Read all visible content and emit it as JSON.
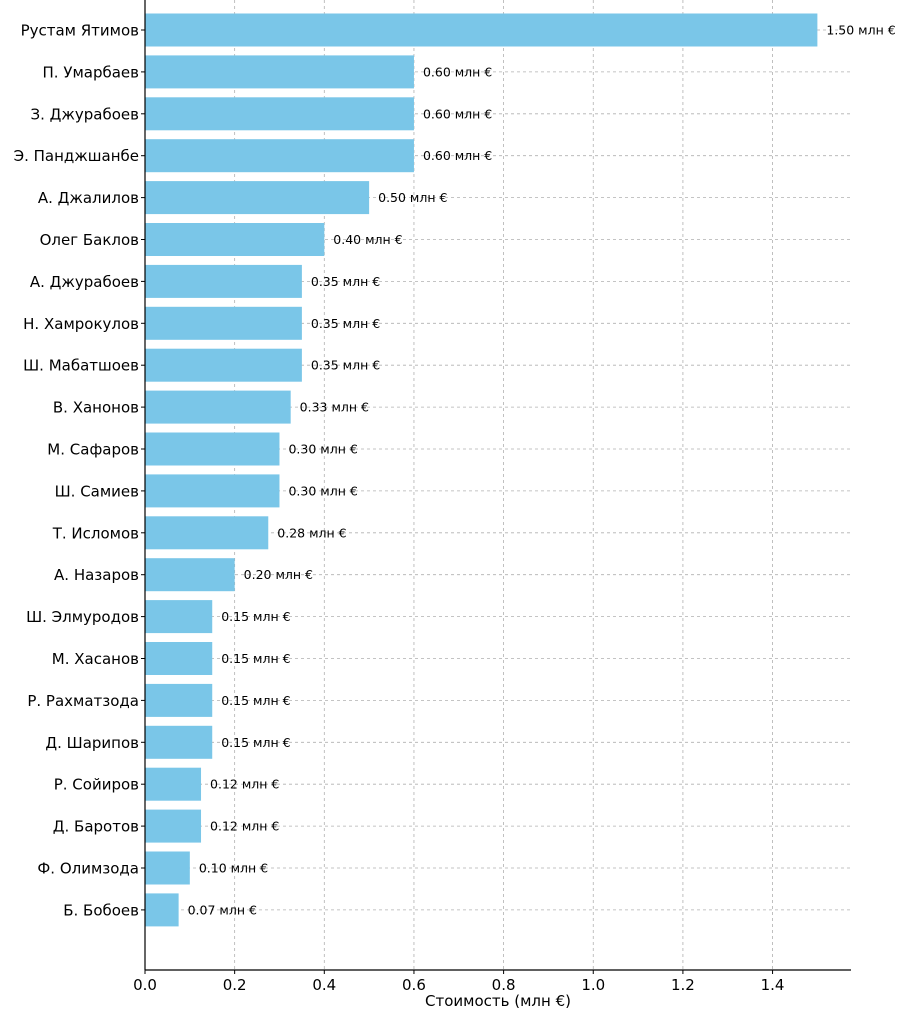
{
  "chart_data": {
    "type": "bar",
    "orientation": "horizontal",
    "categories": [
      "Рустам Ятимов",
      "П. Умарбаев",
      "З. Джурабоев",
      "Э. Панджшанбе",
      "А. Джалилов",
      "Олег Баклов",
      "А. Джурабоев",
      "Н. Хамрокулов",
      "Ш. Мабатшоев",
      "В. Ханонов",
      "М. Сафаров",
      "Ш. Самиев",
      "Т. Исломов",
      "А. Назаров",
      "Ш. Элмуродов",
      "М. Хасанов",
      "Р. Рахматзода",
      "Д. Шарипов",
      "Р. Сойиров",
      "Д. Баротов",
      "Ф. Олимзода",
      "Б. Бобоев"
    ],
    "values": [
      1.5,
      0.6,
      0.6,
      0.6,
      0.5,
      0.4,
      0.35,
      0.35,
      0.35,
      0.325,
      0.3,
      0.3,
      0.275,
      0.2,
      0.15,
      0.15,
      0.15,
      0.15,
      0.125,
      0.125,
      0.1,
      0.075
    ],
    "data_labels": [
      "1.50 млн €",
      "0.60 млн €",
      "0.60 млн €",
      "0.60 млн €",
      "0.50 млн €",
      "0.40 млн €",
      "0.35 млн €",
      "0.35 млн €",
      "0.35 млн €",
      "0.33 млн €",
      "0.30 млн €",
      "0.30 млн €",
      "0.28 млн €",
      "0.20 млн €",
      "0.15 млн €",
      "0.15 млн €",
      "0.15 млн €",
      "0.15 млн €",
      "0.12 млн €",
      "0.12 млн €",
      "0.10 млн €",
      "0.07 млн €"
    ],
    "title": "",
    "xlabel": "Стоимость (млн €)",
    "ylabel": "",
    "xlim": [
      0,
      1.575
    ],
    "xticks": [
      0.0,
      0.2,
      0.4,
      0.6,
      0.8,
      1.0,
      1.2,
      1.4
    ],
    "xtick_labels": [
      "0.0",
      "0.2",
      "0.4",
      "0.6",
      "0.8",
      "1.0",
      "1.2",
      "1.4"
    ],
    "grid": true,
    "bar_color": "#7ac6e8"
  }
}
